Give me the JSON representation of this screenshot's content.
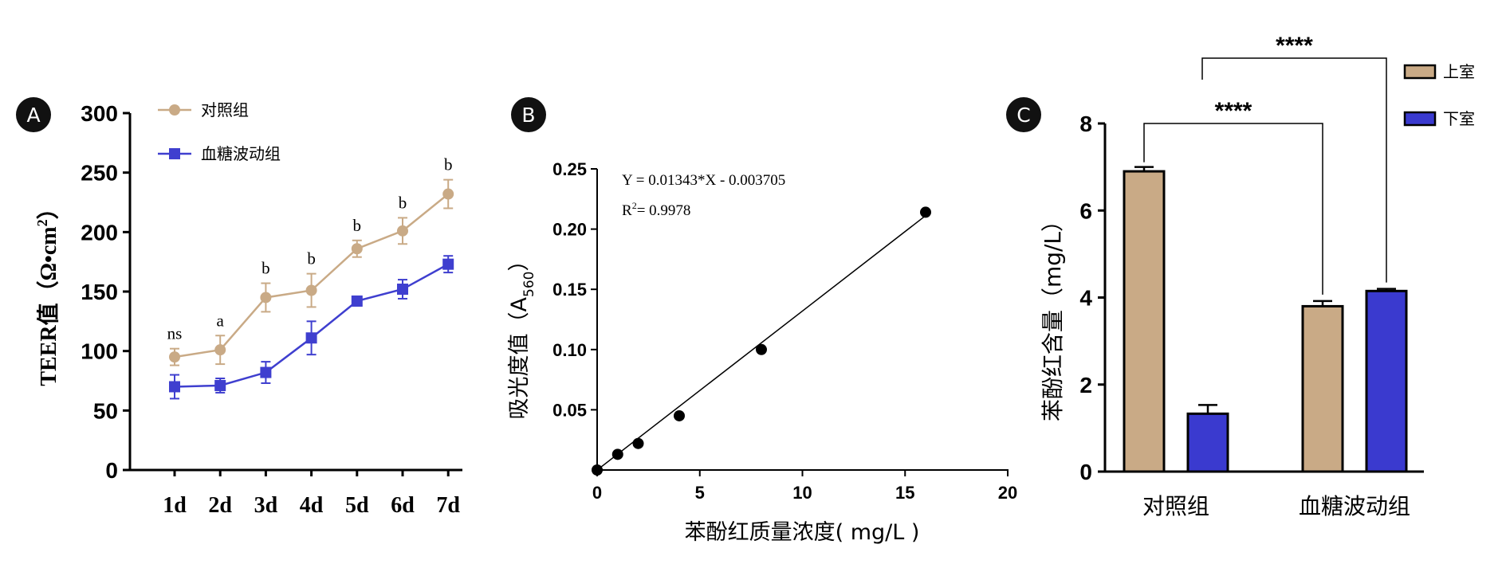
{
  "panel_labels": [
    "A",
    "B",
    "C"
  ],
  "chart_data": [
    {
      "panel": "A",
      "type": "line",
      "ylabel": "TEER值（Ω•cm²）",
      "ylabel_main": "TEER值（Ω•cm",
      "ylabel_sup": "2",
      "ylabel_end": "）",
      "categories": [
        "1d",
        "2d",
        "3d",
        "4d",
        "5d",
        "6d",
        "7d"
      ],
      "ylim": [
        0,
        300
      ],
      "yticks": [
        "0",
        "50",
        "100",
        "150",
        "200",
        "250",
        "300"
      ],
      "legend_placement": "top-left",
      "annotations": [
        "ns",
        "a",
        "b",
        "b",
        "b",
        "b",
        "b"
      ],
      "colors": {
        "control": "#c9aa86",
        "fluct": "#3f3fcf"
      },
      "series": [
        {
          "name": "对照组",
          "marker": "circle",
          "values": [
            95,
            101,
            145,
            151,
            186,
            201,
            232
          ],
          "errors": [
            7,
            12,
            12,
            14,
            7,
            11,
            12
          ]
        },
        {
          "name": "血糖波动组",
          "marker": "square",
          "values": [
            70,
            71,
            82,
            111,
            142,
            152,
            173
          ],
          "errors": [
            10,
            6,
            9,
            14,
            4,
            8,
            7
          ]
        }
      ]
    },
    {
      "panel": "B",
      "type": "scatter",
      "xlabel": "苯酚红质量浓度( mg/L )",
      "ylabel": "吸光度值（A560）",
      "ylabel_main": "吸光度值（A",
      "ylabel_sub": "560",
      "ylabel_end": "）",
      "xlim": [
        0,
        20
      ],
      "ylim": [
        0,
        0.25
      ],
      "xticks": [
        "0",
        "5",
        "10",
        "15",
        "20"
      ],
      "yticks": [
        "0.05",
        "0.10",
        "0.15",
        "0.20",
        "0.25"
      ],
      "equation": "Y = 0.01343*X - 0.003705",
      "r2_prefix": "R",
      "r2_sup": "2",
      "r2_value": "= 0.9978",
      "fit": {
        "slope": 0.01343,
        "intercept": -0.003705
      },
      "points": [
        {
          "x": 0,
          "y": 0.0
        },
        {
          "x": 1,
          "y": 0.013
        },
        {
          "x": 2,
          "y": 0.022
        },
        {
          "x": 4,
          "y": 0.045
        },
        {
          "x": 8,
          "y": 0.1
        },
        {
          "x": 16,
          "y": 0.214
        }
      ]
    },
    {
      "panel": "C",
      "type": "bar",
      "ylabel": "苯酚红含量（mg/L）",
      "categories": [
        "对照组",
        "血糖波动组"
      ],
      "ylim": [
        0,
        8
      ],
      "yticks": [
        "0",
        "2",
        "4",
        "6",
        "8"
      ],
      "legend_placement": "top-right",
      "colors": {
        "upper": "#c9aa86",
        "lower": "#3a3acf"
      },
      "series": [
        {
          "name": "上室",
          "values": [
            6.9,
            3.8
          ],
          "errors": [
            0.1,
            0.12
          ]
        },
        {
          "name": "下室",
          "values": [
            1.33,
            4.15
          ],
          "errors": [
            0.2,
            0.05
          ]
        }
      ],
      "significance": [
        "****",
        "****"
      ]
    }
  ]
}
